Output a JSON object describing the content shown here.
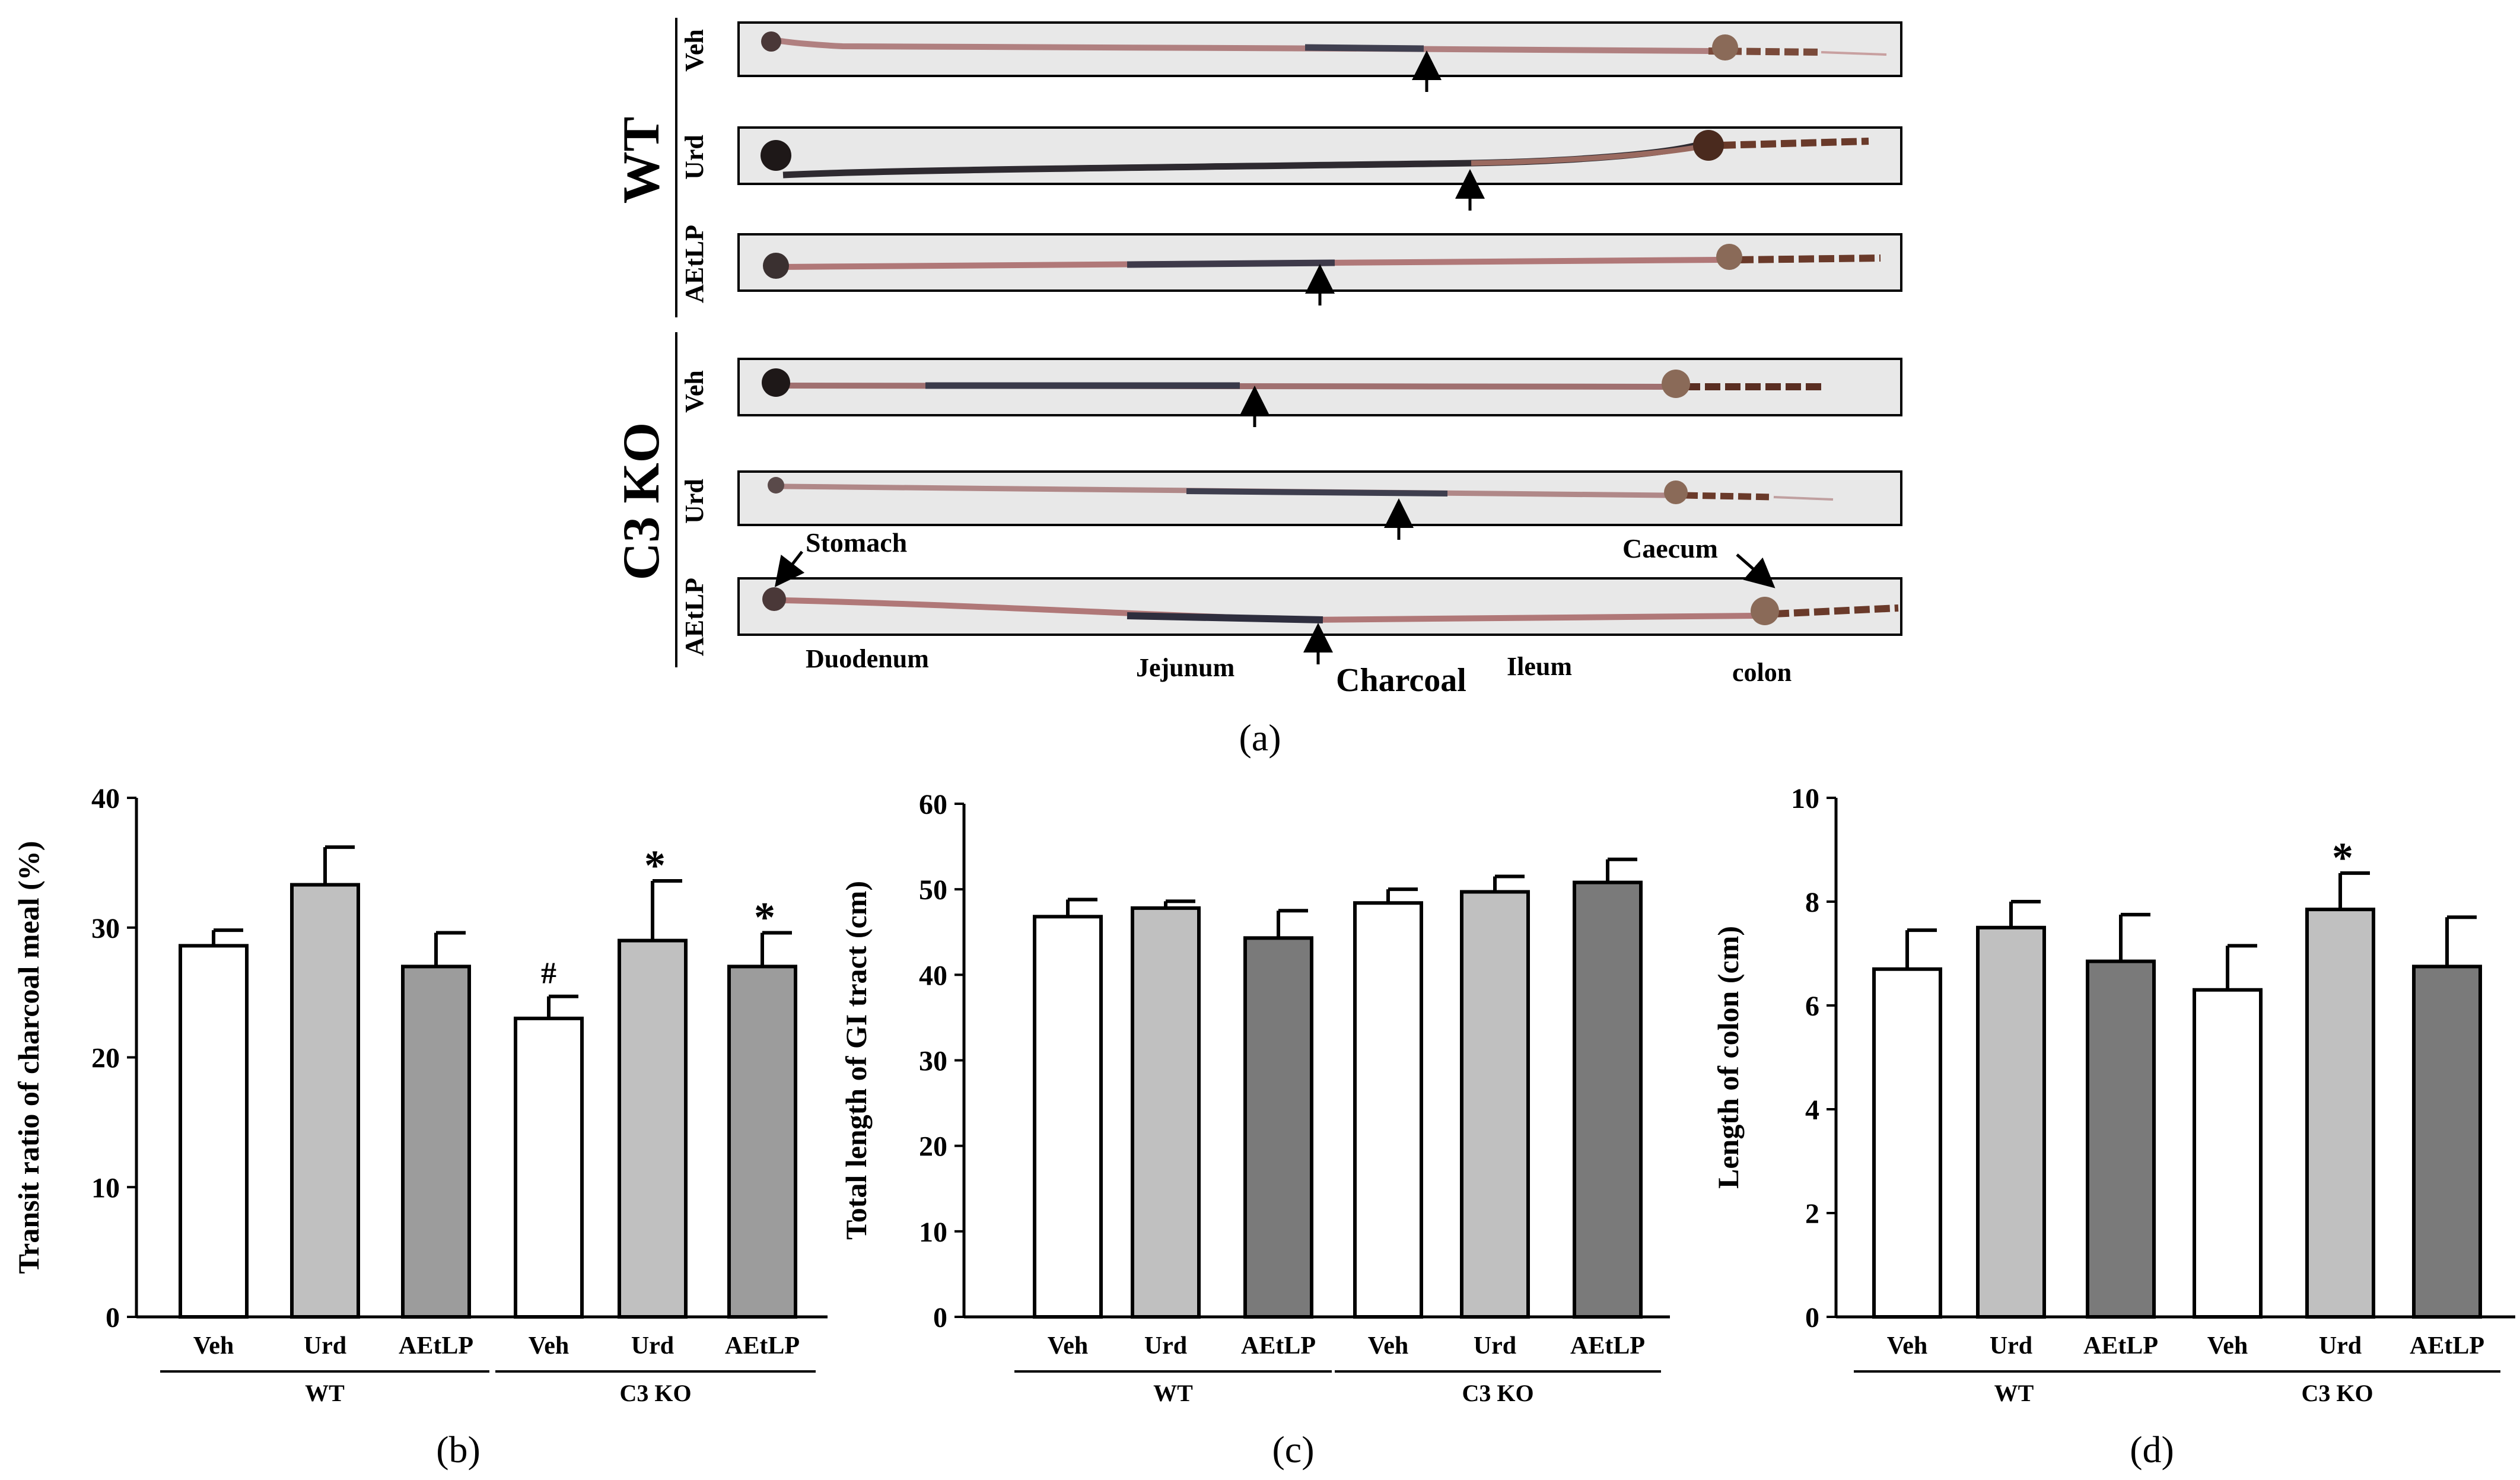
{
  "panel_a": {
    "group_labels": [
      "WT",
      "C3 KO"
    ],
    "strips": [
      {
        "group": "WT",
        "label": "Veh"
      },
      {
        "group": "WT",
        "label": "Urd"
      },
      {
        "group": "WT",
        "label": "AEtLP"
      },
      {
        "group": "C3 KO",
        "label": "Veh"
      },
      {
        "group": "C3 KO",
        "label": "Urd"
      },
      {
        "group": "C3 KO",
        "label": "AEtLP"
      }
    ],
    "annotations": {
      "stomach": "Stomach",
      "caecum": "Caecum",
      "duodenum": "Duodenum",
      "jejunum": "Jejunum",
      "charcoal": "Charcoal",
      "ileum": "Ileum",
      "colon": "colon"
    },
    "caption": "(a)"
  },
  "chart_data": [
    {
      "type": "bar",
      "panel": "b",
      "caption": "(b)",
      "ylabel": "Transit ratio of charcoal meal (%)",
      "ylim": [
        0,
        40
      ],
      "yticks": [
        "0",
        "10",
        "20",
        "30",
        "40"
      ],
      "categories": [
        "Veh",
        "Urd",
        "AEtLP",
        "Veh",
        "Urd",
        "AEtLP"
      ],
      "groups": [
        "WT",
        "C3 KO"
      ],
      "values": [
        28.6,
        33.3,
        27.0,
        23.0,
        29.0,
        27.0
      ],
      "errors": [
        1.2,
        2.9,
        2.6,
        1.7,
        4.6,
        2.6
      ],
      "colors": [
        "#ffffff",
        "#c0c0c0",
        "#9c9c9c",
        "#ffffff",
        "#c0c0c0",
        "#9c9c9c"
      ],
      "markers": [
        "",
        "",
        "",
        "#",
        "*",
        "*"
      ]
    },
    {
      "type": "bar",
      "panel": "c",
      "caption": "(c)",
      "ylabel": "Total length of GI tract (cm)",
      "ylim": [
        0,
        60
      ],
      "yticks": [
        "0",
        "10",
        "20",
        "30",
        "40",
        "50",
        "60"
      ],
      "categories": [
        "Veh",
        "Urd",
        "AEtLP",
        "Veh",
        "Urd",
        "AEtLP"
      ],
      "groups": [
        "WT",
        "C3 KO"
      ],
      "values": [
        46.8,
        47.8,
        44.3,
        48.4,
        49.7,
        50.8
      ],
      "errors": [
        2.0,
        0.8,
        3.2,
        1.6,
        1.8,
        2.7
      ],
      "colors": [
        "#ffffff",
        "#c0c0c0",
        "#7a7a7a",
        "#ffffff",
        "#c0c0c0",
        "#7a7a7a"
      ],
      "markers": [
        "",
        "",
        "",
        "",
        "",
        ""
      ]
    },
    {
      "type": "bar",
      "panel": "d",
      "caption": "(d)",
      "ylabel": "Length of colon (cm)",
      "ylim": [
        0,
        10
      ],
      "yticks": [
        "0",
        "2",
        "4",
        "6",
        "8",
        "10"
      ],
      "categories": [
        "Veh",
        "Urd",
        "AEtLP",
        "Veh",
        "Urd",
        "AEtLP"
      ],
      "groups": [
        "WT",
        "C3 KO"
      ],
      "values": [
        6.7,
        7.5,
        6.85,
        6.3,
        7.85,
        6.75
      ],
      "errors": [
        0.75,
        0.5,
        0.9,
        0.85,
        0.7,
        0.95
      ],
      "colors": [
        "#ffffff",
        "#c0c0c0",
        "#7a7a7a",
        "#ffffff",
        "#c0c0c0",
        "#7a7a7a"
      ],
      "markers": [
        "",
        "",
        "",
        "",
        "*",
        ""
      ]
    }
  ]
}
